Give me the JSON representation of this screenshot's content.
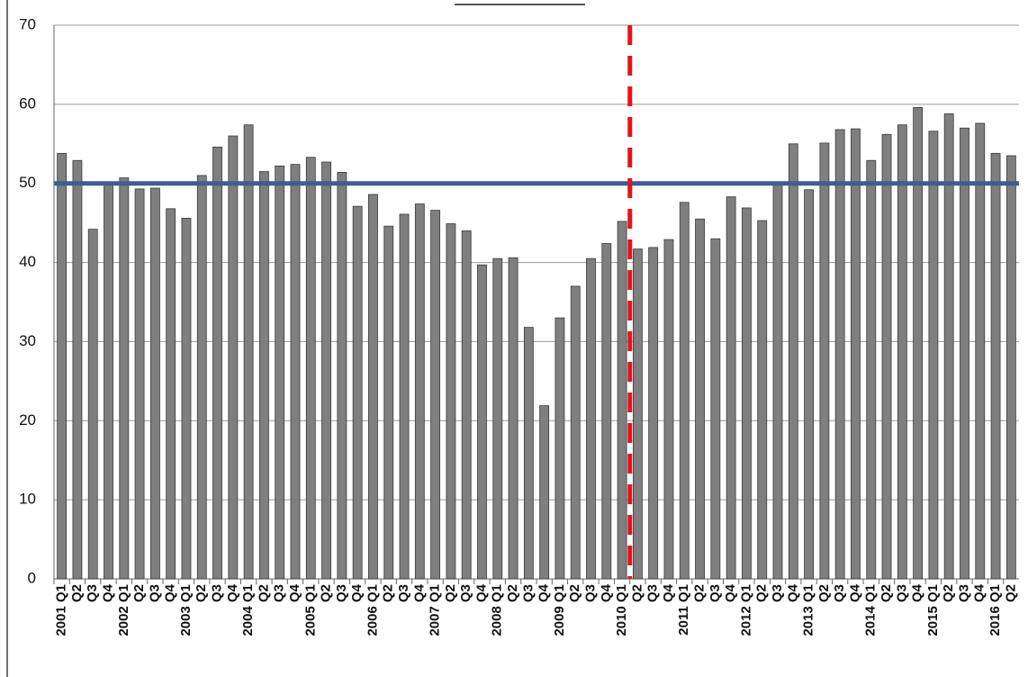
{
  "chart_data": {
    "type": "bar",
    "categories": [
      "2001 Q1",
      "Q2",
      "Q3",
      "Q4",
      "2002 Q1",
      "Q2",
      "Q3",
      "Q4",
      "2003 Q1",
      "Q2",
      "Q3",
      "Q4",
      "2004 Q1",
      "Q2",
      "Q3",
      "Q4",
      "2005 Q1",
      "Q2",
      "Q3",
      "Q4",
      "2006 Q1",
      "Q2",
      "Q3",
      "Q4",
      "2007 Q1",
      "Q2",
      "Q3",
      "Q4",
      "2008 Q1",
      "Q2",
      "Q3",
      "Q4",
      "2009 Q1",
      "Q2",
      "Q3",
      "Q4",
      "2010 Q1",
      "Q2",
      "Q3",
      "Q4",
      "2011 Q1",
      "Q2",
      "Q3",
      "Q4",
      "2012 Q1",
      "Q2",
      "Q3",
      "Q4",
      "2013 Q1",
      "Q2",
      "Q3",
      "Q4",
      "2014 Q1",
      "Q2",
      "Q3",
      "Q4",
      "2015 Q1",
      "Q2",
      "Q3",
      "Q4",
      "2016 Q1",
      "Q2"
    ],
    "values": [
      53.8,
      52.9,
      44.2,
      50.0,
      50.7,
      49.3,
      49.4,
      46.8,
      45.6,
      51.0,
      54.6,
      56.0,
      57.4,
      51.5,
      52.2,
      52.4,
      53.3,
      52.7,
      51.4,
      47.1,
      48.6,
      44.6,
      46.1,
      47.4,
      46.6,
      44.9,
      44.0,
      39.7,
      40.5,
      40.6,
      31.8,
      21.9,
      33.0,
      37.0,
      40.5,
      42.4,
      45.2,
      41.7,
      41.9,
      42.9,
      47.6,
      45.5,
      43.0,
      48.3,
      46.9,
      45.3,
      50.0,
      55.0,
      49.2,
      55.1,
      56.8,
      56.9,
      52.9,
      56.2,
      57.4,
      59.6,
      56.6,
      58.8,
      57.0,
      57.6,
      53.8,
      53.5
    ],
    "color": "#7f7f7f",
    "ylim": [
      0,
      70
    ],
    "yticks": [
      0,
      10,
      20,
      30,
      40,
      50,
      60,
      70
    ],
    "grid": true,
    "hline": {
      "value": 50,
      "color": "#3a5f93"
    },
    "vline": {
      "after": "2010 Q1",
      "color": "#e8121b"
    }
  }
}
